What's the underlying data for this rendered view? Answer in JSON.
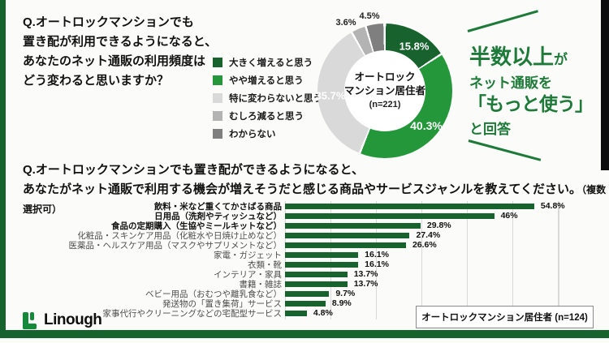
{
  "q1": {
    "lines": [
      "Q.オートロックマンションでも",
      "置き配が利用できるようになると、",
      "あなたのネット通販の利用頻度は",
      "どう変わると思いますか？"
    ]
  },
  "callout": {
    "line1_main": "半数以上",
    "line1_tail": "が",
    "line2": "ネット通販を",
    "line3": "「もっと使う」",
    "line4": "と回答",
    "color": "#1d7a38"
  },
  "q2": {
    "line1": "Q.オートロックマンションでも置き配ができるようになると、",
    "line2_main": "あなたがネット通販で利用する機会が増えそうだと感じる商品やサービスジャンルを教えてください。",
    "line2_note": "（複数選択可）"
  },
  "footer": {
    "brand": "Linough"
  },
  "colors": {
    "dark_green": "#17622d",
    "bright_green": "#23973a",
    "light_gray": "#d9d9d9",
    "mid_gray": "#b3b3b3",
    "dark_gray": "#7f7f7f",
    "frame_green": "#16632e",
    "callout_green": "#1d7a38"
  },
  "chart_data": [
    {
      "type": "pie",
      "subtype": "donut",
      "labels": [
        "大きく増えると思う",
        "やや増えると思う",
        "特に変わらないと思う",
        "むしろ減ると思う",
        "わからない"
      ],
      "values": [
        15.8,
        40.3,
        35.7,
        3.6,
        4.5
      ],
      "value_labels": [
        "15.8%",
        "40.3%",
        "35.7%",
        "3.6%",
        "4.5%"
      ],
      "colors": [
        "#17622d",
        "#23973a",
        "#d9d9d9",
        "#b3b3b3",
        "#7f7f7f"
      ],
      "center_label": [
        "オートロック",
        "マンション居住者",
        "(n=221)"
      ],
      "legend_position": "left",
      "start_angle_deg": 0,
      "direction": "clockwise"
    },
    {
      "type": "bar",
      "orientation": "horizontal",
      "categories": [
        "飲料・米など重くてかさばる商品",
        "日用品（洗剤やティッシュなど）",
        "食品の定期購入（生協やミールキットなど）",
        "化粧品・スキンケア用品（化粧水や日焼け止めなど）",
        "医薬品・ヘルスケア用品（マスクやサプリメントなど）",
        "家電・ガジェット",
        "衣類・靴",
        "インテリア・家具",
        "書籍・雑誌",
        "ベビー用品（おむつや離乳食など）",
        "発送物の「置き集荷」サービス",
        "家事代行やクリーニングなどの宅配型サービス"
      ],
      "values": [
        54.8,
        46,
        29.8,
        27.4,
        26.6,
        16.1,
        16.1,
        13.7,
        13.7,
        9.7,
        8.9,
        4.8
      ],
      "value_labels": [
        "54.8%",
        "46%",
        "29.8%",
        "27.4%",
        "26.6%",
        "16.1%",
        "16.1%",
        "13.7%",
        "13.7%",
        "9.7%",
        "8.9%",
        "4.8%"
      ],
      "bold_categories": [
        true,
        true,
        true,
        false,
        false,
        false,
        false,
        false,
        false,
        false,
        false,
        false
      ],
      "xlim": [
        0,
        60
      ],
      "grid_step": 10,
      "grid": true,
      "bar_color": "#17622d",
      "note": "オートロックマンション居住者 (n=124)"
    }
  ]
}
